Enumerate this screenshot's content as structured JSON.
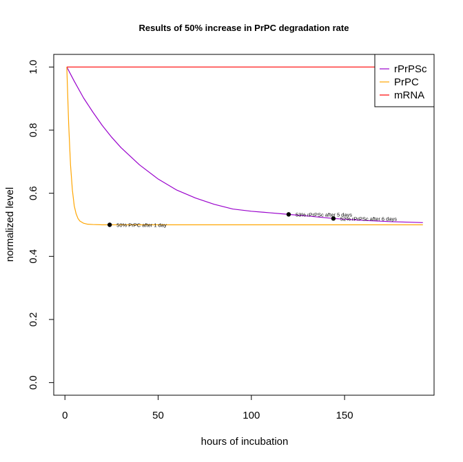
{
  "chart_data": {
    "type": "line",
    "title": "Results of 50% increase in PrPC degradation rate",
    "xlabel": "hours of incubation",
    "ylabel": "normalized level",
    "xlim": [
      -6,
      198
    ],
    "ylim": [
      -0.04,
      1.04
    ],
    "xticks": [
      0,
      50,
      100,
      150
    ],
    "yticks": [
      0.0,
      0.2,
      0.4,
      0.6,
      0.8,
      1.0
    ],
    "xtick_labels": [
      "0",
      "50",
      "100",
      "150"
    ],
    "ytick_labels": [
      "0.0",
      "0.2",
      "0.4",
      "0.6",
      "0.8",
      "1.0"
    ],
    "grid": false,
    "legend_position": "top-right",
    "series": [
      {
        "name": "rPrPSc",
        "color": "#9900CC",
        "x": [
          1,
          5,
          10,
          15,
          20,
          25,
          30,
          40,
          50,
          60,
          70,
          80,
          90,
          100,
          110,
          120,
          130,
          144,
          160,
          175,
          192
        ],
        "y": [
          1.0,
          0.955,
          0.902,
          0.857,
          0.815,
          0.778,
          0.745,
          0.69,
          0.645,
          0.61,
          0.585,
          0.565,
          0.55,
          0.543,
          0.538,
          0.533,
          0.528,
          0.52,
          0.514,
          0.51,
          0.507
        ]
      },
      {
        "name": "PrPC",
        "color": "#FFA500",
        "x": [
          1,
          2,
          3,
          4,
          5,
          6,
          7,
          8,
          10,
          12,
          15,
          20,
          24,
          30,
          60,
          100,
          144,
          192
        ],
        "y": [
          1.0,
          0.82,
          0.69,
          0.61,
          0.56,
          0.535,
          0.52,
          0.512,
          0.505,
          0.502,
          0.501,
          0.5,
          0.5,
          0.5,
          0.5,
          0.5,
          0.5,
          0.5
        ]
      },
      {
        "name": "mRNA",
        "color": "#FF0000",
        "x": [
          1,
          192
        ],
        "y": [
          1.0,
          1.0
        ]
      }
    ],
    "annotations": [
      {
        "x": 24,
        "y": 0.5,
        "text": "50% PrPC after 1 day"
      },
      {
        "x": 120,
        "y": 0.533,
        "text": "53% rPrPSc after 5 days"
      },
      {
        "x": 144,
        "y": 0.52,
        "text": "52% rPrPSc after 6 days"
      }
    ]
  }
}
